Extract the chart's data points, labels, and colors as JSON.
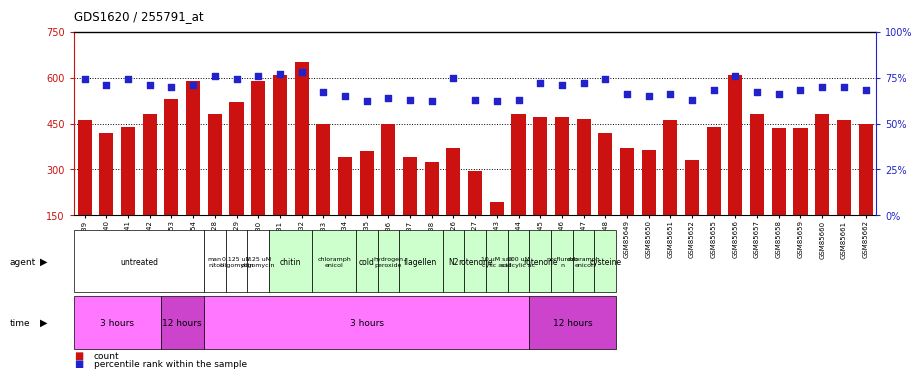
{
  "title": "GDS1620 / 255791_at",
  "samples": [
    "GSM85639",
    "GSM85640",
    "GSM85641",
    "GSM85642",
    "GSM85653",
    "GSM85654",
    "GSM85628",
    "GSM85629",
    "GSM85630",
    "GSM85631",
    "GSM85632",
    "GSM85633",
    "GSM85634",
    "GSM85635",
    "GSM85636",
    "GSM85637",
    "GSM85638",
    "GSM85626",
    "GSM85627",
    "GSM85643",
    "GSM85644",
    "GSM85645",
    "GSM85646",
    "GSM85647",
    "GSM85648",
    "GSM85649",
    "GSM85650",
    "GSM85651",
    "GSM85652",
    "GSM85655",
    "GSM85656",
    "GSM85657",
    "GSM85658",
    "GSM85659",
    "GSM85660",
    "GSM85661",
    "GSM85662"
  ],
  "counts": [
    460,
    420,
    440,
    480,
    530,
    590,
    480,
    520,
    590,
    610,
    650,
    450,
    340,
    360,
    450,
    340,
    325,
    370,
    295,
    195,
    480,
    470,
    470,
    465,
    420,
    370,
    365,
    460,
    330,
    440,
    610,
    480,
    435,
    435,
    480,
    460,
    450
  ],
  "percentile_ranks": [
    74,
    71,
    74,
    71,
    70,
    71,
    76,
    74,
    76,
    77,
    78,
    67,
    65,
    62,
    64,
    63,
    62,
    75,
    63,
    62,
    63,
    72,
    71,
    72,
    74,
    66,
    65,
    66,
    63,
    68,
    76,
    67,
    66,
    68,
    70,
    70,
    68
  ],
  "bar_color": "#cc1111",
  "dot_color": "#2222cc",
  "ylim_left": [
    150,
    750
  ],
  "ylim_right": [
    0,
    100
  ],
  "yticks_left": [
    150,
    300,
    450,
    600,
    750
  ],
  "yticks_right": [
    0,
    25,
    50,
    75,
    100
  ],
  "agent_groups": [
    {
      "label": "untreated",
      "start": 0,
      "end": 6,
      "color": "#ffffff"
    },
    {
      "label": "man\nnitol",
      "start": 6,
      "end": 7,
      "color": "#ffffff"
    },
    {
      "label": "0.125 uM\noligomycin",
      "start": 7,
      "end": 8,
      "color": "#ffffff"
    },
    {
      "label": "1.25 uM\noligomycin",
      "start": 8,
      "end": 9,
      "color": "#ffffff"
    },
    {
      "label": "chitin",
      "start": 9,
      "end": 11,
      "color": "#ccffcc"
    },
    {
      "label": "chloramph\nenicol",
      "start": 11,
      "end": 13,
      "color": "#ccffcc"
    },
    {
      "label": "cold",
      "start": 13,
      "end": 14,
      "color": "#ccffcc"
    },
    {
      "label": "hydrogen\nperoxide",
      "start": 14,
      "end": 15,
      "color": "#ccffcc"
    },
    {
      "label": "flagellen",
      "start": 15,
      "end": 17,
      "color": "#ccffcc"
    },
    {
      "label": "N2",
      "start": 17,
      "end": 18,
      "color": "#ccffcc"
    },
    {
      "label": "rotenone",
      "start": 18,
      "end": 19,
      "color": "#ccffcc"
    },
    {
      "label": "10 uM sali\ncylic acid",
      "start": 19,
      "end": 20,
      "color": "#ccffcc"
    },
    {
      "label": "100 uM\nsalicylic ac",
      "start": 20,
      "end": 21,
      "color": "#ccffcc"
    },
    {
      "label": "rotenone",
      "start": 21,
      "end": 22,
      "color": "#ccffcc"
    },
    {
      "label": "norflurazo\nn",
      "start": 22,
      "end": 23,
      "color": "#ccffcc"
    },
    {
      "label": "chloramph\nenicol",
      "start": 23,
      "end": 24,
      "color": "#ccffcc"
    },
    {
      "label": "cysteine",
      "start": 24,
      "end": 25,
      "color": "#ccffcc"
    }
  ],
  "time_groups": [
    {
      "label": "3 hours",
      "start": 0,
      "end": 4,
      "color": "#ff77ff"
    },
    {
      "label": "12 hours",
      "start": 4,
      "end": 6,
      "color": "#cc44cc"
    },
    {
      "label": "3 hours",
      "start": 6,
      "end": 21,
      "color": "#ff77ff"
    },
    {
      "label": "12 hours",
      "start": 21,
      "end": 25,
      "color": "#cc44cc"
    }
  ],
  "legend_count_color": "#cc1111",
  "legend_dot_color": "#2222cc"
}
